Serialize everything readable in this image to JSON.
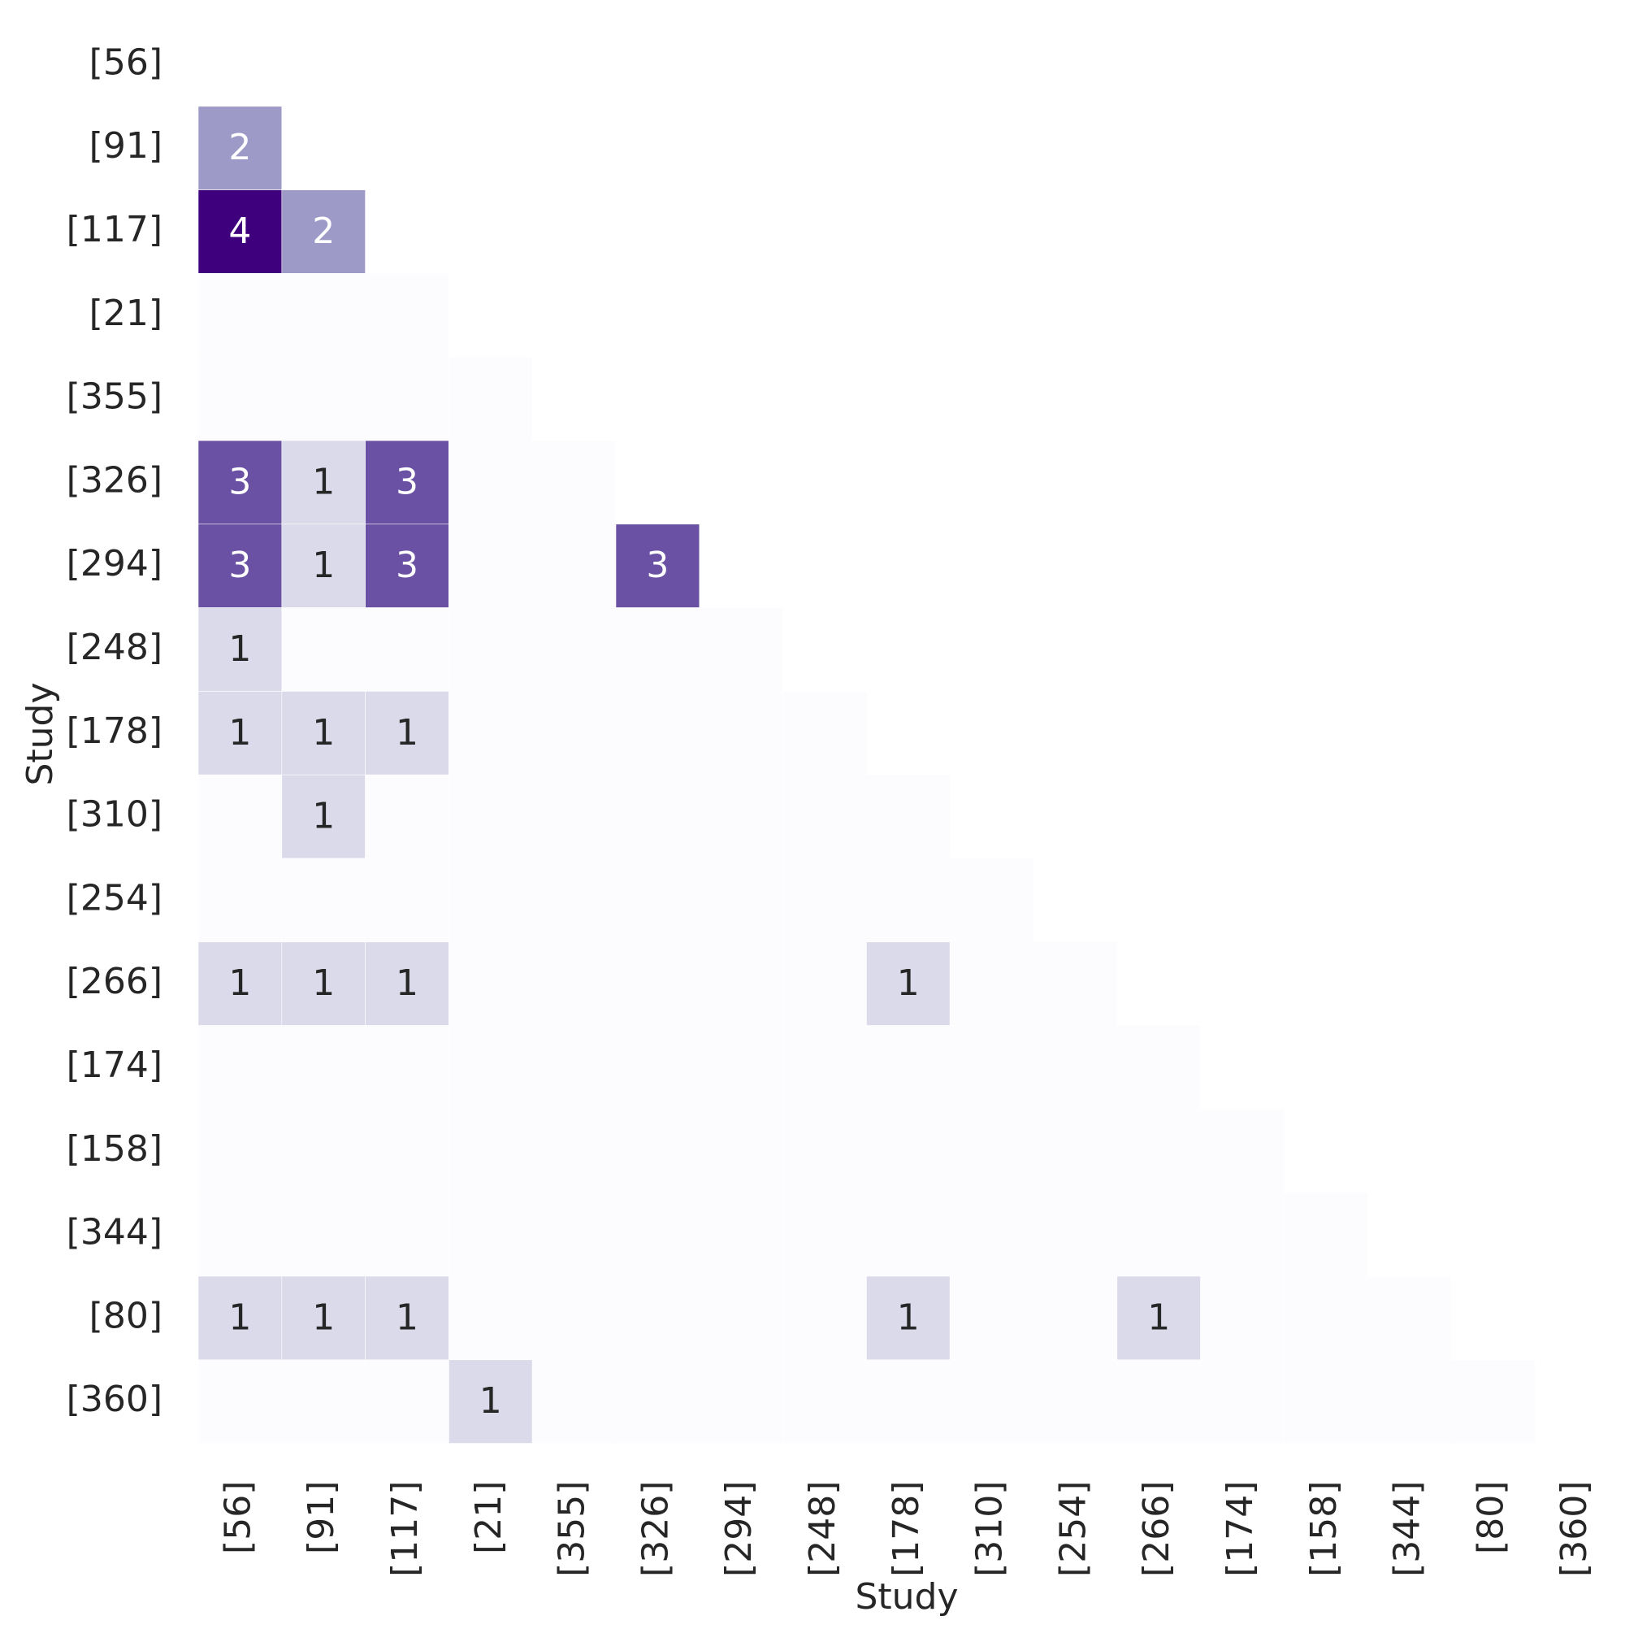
{
  "chart_data": {
    "type": "heatmap",
    "x_label": "Study",
    "y_label": "Study",
    "x_categories": [
      "[56]",
      "[91]",
      "[117]",
      "[21]",
      "[355]",
      "[326]",
      "[294]",
      "[248]",
      "[178]",
      "[310]",
      "[254]",
      "[266]",
      "[174]",
      "[158]",
      "[344]",
      "[80]",
      "[360]"
    ],
    "y_categories": [
      "[56]",
      "[91]",
      "[117]",
      "[21]",
      "[355]",
      "[326]",
      "[294]",
      "[248]",
      "[178]",
      "[310]",
      "[254]",
      "[266]",
      "[174]",
      "[158]",
      "[344]",
      "[80]",
      "[360]"
    ],
    "values": [
      [
        null,
        null,
        null,
        null,
        null,
        null,
        null,
        null,
        null,
        null,
        null,
        null,
        null,
        null,
        null,
        null,
        null
      ],
      [
        2,
        null,
        null,
        null,
        null,
        null,
        null,
        null,
        null,
        null,
        null,
        null,
        null,
        null,
        null,
        null,
        null
      ],
      [
        4,
        2,
        null,
        null,
        null,
        null,
        null,
        null,
        null,
        null,
        null,
        null,
        null,
        null,
        null,
        null,
        null
      ],
      [
        0,
        0,
        0,
        null,
        null,
        null,
        null,
        null,
        null,
        null,
        null,
        null,
        null,
        null,
        null,
        null,
        null
      ],
      [
        0,
        0,
        0,
        0,
        null,
        null,
        null,
        null,
        null,
        null,
        null,
        null,
        null,
        null,
        null,
        null,
        null
      ],
      [
        3,
        1,
        3,
        0,
        0,
        null,
        null,
        null,
        null,
        null,
        null,
        null,
        null,
        null,
        null,
        null,
        null
      ],
      [
        3,
        1,
        3,
        0,
        0,
        3,
        null,
        null,
        null,
        null,
        null,
        null,
        null,
        null,
        null,
        null,
        null
      ],
      [
        1,
        0,
        0,
        0,
        0,
        0,
        0,
        null,
        null,
        null,
        null,
        null,
        null,
        null,
        null,
        null,
        null
      ],
      [
        1,
        1,
        1,
        0,
        0,
        0,
        0,
        0,
        null,
        null,
        null,
        null,
        null,
        null,
        null,
        null,
        null
      ],
      [
        0,
        1,
        0,
        0,
        0,
        0,
        0,
        0,
        0,
        null,
        null,
        null,
        null,
        null,
        null,
        null,
        null
      ],
      [
        0,
        0,
        0,
        0,
        0,
        0,
        0,
        0,
        0,
        0,
        null,
        null,
        null,
        null,
        null,
        null,
        null
      ],
      [
        1,
        1,
        1,
        0,
        0,
        0,
        0,
        0,
        1,
        0,
        0,
        null,
        null,
        null,
        null,
        null,
        null
      ],
      [
        0,
        0,
        0,
        0,
        0,
        0,
        0,
        0,
        0,
        0,
        0,
        0,
        null,
        null,
        null,
        null,
        null
      ],
      [
        0,
        0,
        0,
        0,
        0,
        0,
        0,
        0,
        0,
        0,
        0,
        0,
        0,
        null,
        null,
        null,
        null
      ],
      [
        0,
        0,
        0,
        0,
        0,
        0,
        0,
        0,
        0,
        0,
        0,
        0,
        0,
        0,
        null,
        null,
        null
      ],
      [
        1,
        1,
        1,
        0,
        0,
        0,
        0,
        0,
        1,
        0,
        0,
        1,
        0,
        0,
        0,
        null,
        null
      ],
      [
        0,
        0,
        0,
        1,
        0,
        0,
        0,
        0,
        0,
        0,
        0,
        0,
        0,
        0,
        0,
        0,
        null
      ]
    ],
    "clim": [
      0,
      4
    ],
    "color_scale": [
      "#fcfbfd",
      "#dadaeb",
      "#9e9ac8",
      "#6a51a3",
      "#3f007d"
    ]
  }
}
